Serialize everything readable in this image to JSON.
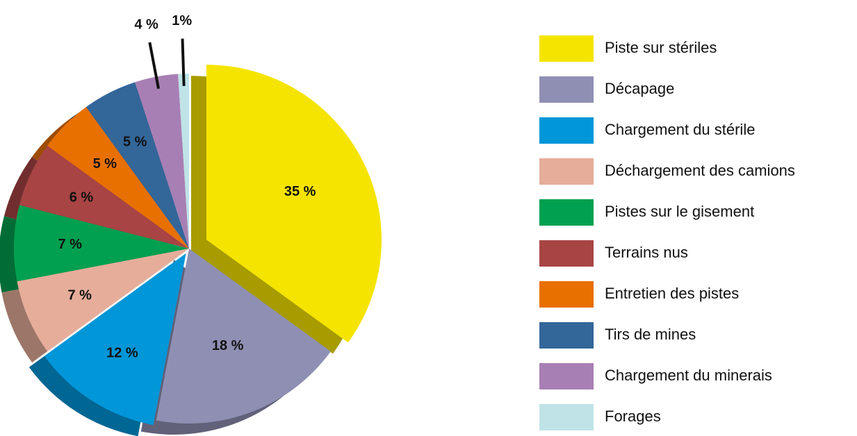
{
  "chart_data": {
    "type": "pie",
    "categories": [
      "Piste sur stériles",
      "Décapage",
      "Chargement du stérile",
      "Déchargement des camions",
      "Pistes sur le gisement",
      "Terrains nus",
      "Entretien des pistes",
      "Tirs de mines",
      "Chargement du minerais",
      "Forages"
    ],
    "values": [
      35,
      18,
      12,
      7,
      7,
      6,
      5,
      5,
      4,
      1
    ],
    "value_labels": [
      "35 %",
      "18 %",
      "12 %",
      "7 %",
      "7 %",
      "6 %",
      "5 %",
      "5 %",
      "4 %",
      "1%"
    ],
    "colors": [
      "#f5e400",
      "#8f8fb4",
      "#0096d8",
      "#e6ad9b",
      "#00a050",
      "#a84444",
      "#e87000",
      "#336699",
      "#a87fb4",
      "#bfe3e6"
    ],
    "legend": "right"
  }
}
